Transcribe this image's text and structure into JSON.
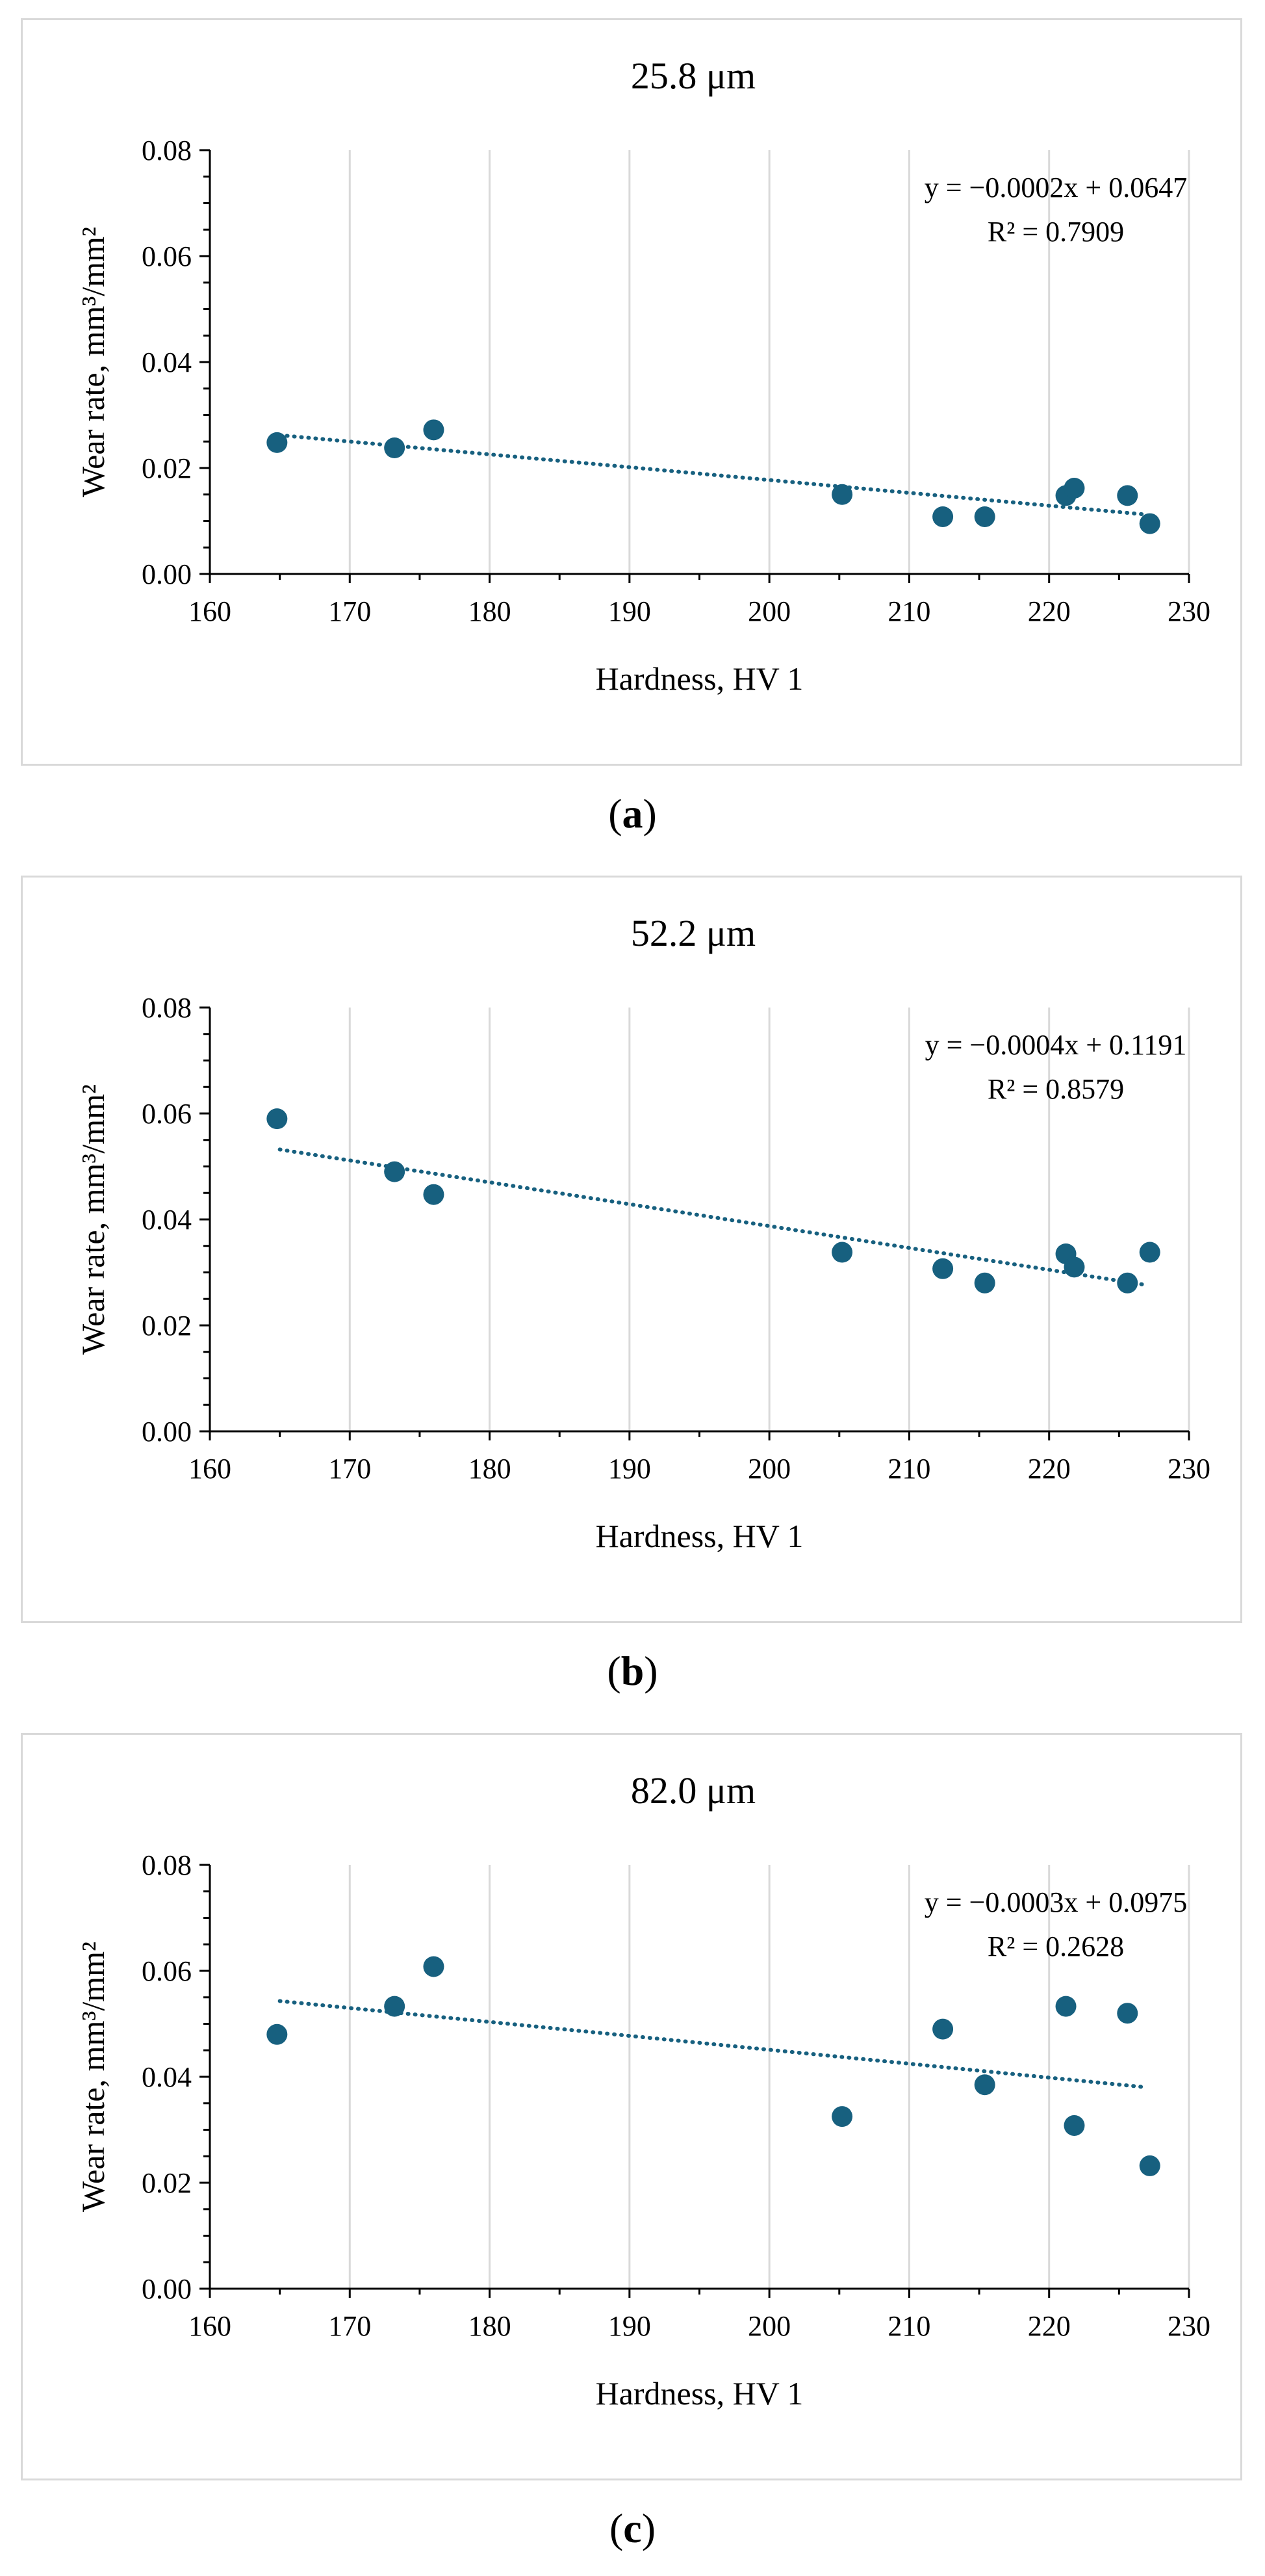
{
  "chart_data": [
    {
      "type": "scatter",
      "panel_label": "a",
      "title": "25.8 μm",
      "xlabel": "Hardness, HV 1",
      "ylabel": "Wear rate, mm³/mm²",
      "xlim": [
        160,
        230
      ],
      "ylim": [
        0.0,
        0.08
      ],
      "xticks": [
        "160",
        "170",
        "180",
        "190",
        "200",
        "210",
        "220",
        "230"
      ],
      "yticks": [
        "0.00",
        "0.02",
        "0.04",
        "0.06",
        "0.08"
      ],
      "grid": "vertical",
      "marker_color": "#17607f",
      "trendline_color": "#17607f",
      "points": [
        {
          "x": 164.8,
          "y": 0.0248
        },
        {
          "x": 173.2,
          "y": 0.0238
        },
        {
          "x": 176.0,
          "y": 0.0272
        },
        {
          "x": 205.2,
          "y": 0.015
        },
        {
          "x": 212.4,
          "y": 0.0108
        },
        {
          "x": 215.4,
          "y": 0.0108
        },
        {
          "x": 221.2,
          "y": 0.0148
        },
        {
          "x": 221.8,
          "y": 0.0162
        },
        {
          "x": 225.6,
          "y": 0.0148
        },
        {
          "x": 227.2,
          "y": 0.0095
        }
      ],
      "trendline": {
        "x_start": 165,
        "y_start": 0.0262,
        "x_end": 227,
        "y_end": 0.0112
      },
      "equation": "y = −0.0002x + 0.0647",
      "r_squared": "R² = 0.7909"
    },
    {
      "type": "scatter",
      "panel_label": "b",
      "title": "52.2 μm",
      "xlabel": "Hardness, HV 1",
      "ylabel": "Wear rate, mm³/mm²",
      "xlim": [
        160,
        230
      ],
      "ylim": [
        0.0,
        0.08
      ],
      "xticks": [
        "160",
        "170",
        "180",
        "190",
        "200",
        "210",
        "220",
        "230"
      ],
      "yticks": [
        "0.00",
        "0.02",
        "0.04",
        "0.06",
        "0.08"
      ],
      "grid": "vertical",
      "marker_color": "#17607f",
      "trendline_color": "#17607f",
      "points": [
        {
          "x": 164.8,
          "y": 0.059
        },
        {
          "x": 173.2,
          "y": 0.049
        },
        {
          "x": 176.0,
          "y": 0.0447
        },
        {
          "x": 205.2,
          "y": 0.0338
        },
        {
          "x": 212.4,
          "y": 0.0307
        },
        {
          "x": 215.4,
          "y": 0.028
        },
        {
          "x": 221.2,
          "y": 0.0335
        },
        {
          "x": 221.8,
          "y": 0.031
        },
        {
          "x": 225.6,
          "y": 0.028
        },
        {
          "x": 227.2,
          "y": 0.0338
        }
      ],
      "trendline": {
        "x_start": 165,
        "y_start": 0.0532,
        "x_end": 227,
        "y_end": 0.0276
      },
      "equation": "y = −0.0004x + 0.1191",
      "r_squared": "R² = 0.8579"
    },
    {
      "type": "scatter",
      "panel_label": "c",
      "title": "82.0 μm",
      "xlabel": "Hardness, HV 1",
      "ylabel": "Wear rate, mm³/mm²",
      "xlim": [
        160,
        230
      ],
      "ylim": [
        0.0,
        0.08
      ],
      "xticks": [
        "160",
        "170",
        "180",
        "190",
        "200",
        "210",
        "220",
        "230"
      ],
      "yticks": [
        "0.00",
        "0.02",
        "0.04",
        "0.06",
        "0.08"
      ],
      "grid": "vertical",
      "marker_color": "#17607f",
      "trendline_color": "#17607f",
      "points": [
        {
          "x": 164.8,
          "y": 0.048
        },
        {
          "x": 173.2,
          "y": 0.0533
        },
        {
          "x": 176.0,
          "y": 0.0608
        },
        {
          "x": 205.2,
          "y": 0.0325
        },
        {
          "x": 212.4,
          "y": 0.049
        },
        {
          "x": 215.4,
          "y": 0.0385
        },
        {
          "x": 221.2,
          "y": 0.0533
        },
        {
          "x": 221.8,
          "y": 0.0308
        },
        {
          "x": 225.6,
          "y": 0.052
        },
        {
          "x": 227.2,
          "y": 0.0232
        }
      ],
      "trendline": {
        "x_start": 165,
        "y_start": 0.0543,
        "x_end": 227,
        "y_end": 0.038
      },
      "equation": "y = −0.0003x + 0.0975",
      "r_squared": "R² = 0.2628"
    }
  ],
  "captions": {
    "a": {
      "open": "(",
      "letter": "a",
      "close": ")"
    },
    "b": {
      "open": "(",
      "letter": "b",
      "close": ")"
    },
    "c": {
      "open": "(",
      "letter": "c",
      "close": ")"
    }
  }
}
